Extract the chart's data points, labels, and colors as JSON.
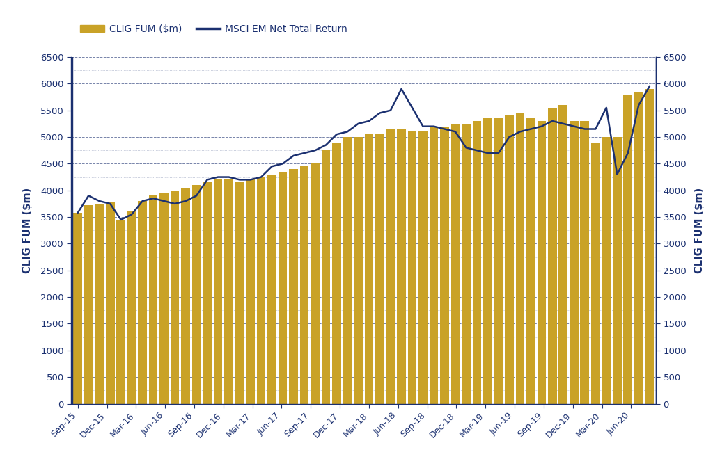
{
  "labels": [
    "Sep-15",
    "Dec-15",
    "Mar-16",
    "Jun-16",
    "Sep-16",
    "Dec-16",
    "Mar-17",
    "Jun-17",
    "Sep-17",
    "Dec-17",
    "Mar-18",
    "Jun-18",
    "Sep-18",
    "Dec-18",
    "Mar-19",
    "Jun-19",
    "Sep-19",
    "Dec-19",
    "Mar-20",
    "Jun-20"
  ],
  "fum_bars": [
    3580,
    3720,
    3750,
    3780,
    3450,
    3600,
    3800,
    3900,
    3950,
    4000,
    4050,
    4100,
    4150,
    4200,
    4200,
    4150,
    4200,
    4250,
    4300,
    4350,
    4400,
    4450,
    4500,
    4750,
    4900,
    5000,
    5000,
    5050,
    5050,
    5150,
    5150,
    5100,
    5100,
    5200,
    5200,
    5250,
    5250,
    5300,
    5350,
    5350,
    5400,
    5450,
    5350,
    5300,
    5550,
    5600,
    5300,
    5300,
    4900,
    5000,
    5000,
    5800,
    5850,
    5900
  ],
  "msci_line": [
    3580,
    3900,
    3800,
    3750,
    3450,
    3550,
    3800,
    3850,
    3800,
    3750,
    3800,
    3900,
    4200,
    4250,
    4250,
    4200,
    4200,
    4250,
    4450,
    4500,
    4650,
    4700,
    4750,
    4850,
    5050,
    5100,
    5250,
    5300,
    5450,
    5500,
    5900,
    5550,
    5200,
    5200,
    5150,
    5100,
    4800,
    4750,
    4700,
    4700,
    5000,
    5100,
    5150,
    5200,
    5300,
    5250,
    5200,
    5150,
    5150,
    5550,
    4300,
    4700,
    5600,
    5950
  ],
  "bar_color": "#C9A227",
  "line_color": "#1B3070",
  "background_color": "#ffffff",
  "axis_color": "#1B3070",
  "ylabel_left": "CLIG FUM ($m)",
  "ylabel_right": "CLIG FUM ($m)",
  "ylim": [
    0,
    6500
  ],
  "yticks": [
    0,
    500,
    1000,
    1500,
    2000,
    2500,
    3000,
    3500,
    4000,
    4500,
    5000,
    5500,
    6000,
    6500
  ],
  "xtick_labels": [
    "Sep-15",
    "Dec-15",
    "Mar-16",
    "Jun-16",
    "Sep-16",
    "Dec-16",
    "Mar-17",
    "Jun-17",
    "Sep-17",
    "Dec-17",
    "Mar-18",
    "Jun-18",
    "Sep-18",
    "Dec-18",
    "Mar-19",
    "Jun-19",
    "Sep-19",
    "Dec-19",
    "Mar-20",
    "Jun-20"
  ],
  "xtick_positions": [
    0,
    2.7,
    5.4,
    8.1,
    10.8,
    13.5,
    16.2,
    18.9,
    21.6,
    24.3,
    27.0,
    29.7,
    32.4,
    35.1,
    37.8,
    40.5,
    43.2,
    45.9,
    48.6,
    51.3
  ],
  "legend_fum": "CLIG FUM ($m)",
  "legend_msci": "MSCI EM Net Total Return",
  "n_bars": 54
}
